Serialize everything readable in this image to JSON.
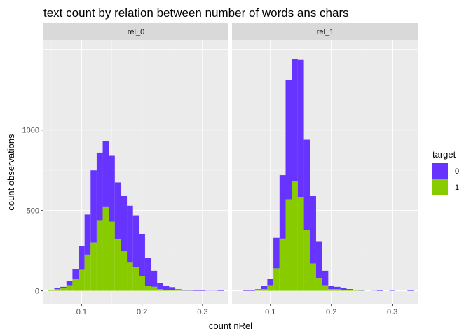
{
  "chart_data": {
    "type": "bar",
    "title": "text count by relation between number of words ans chars",
    "xlabel": "count nRel",
    "ylabel": "count observations",
    "xlim": [
      0.037,
      0.343
    ],
    "ylim": [
      -80,
      1560
    ],
    "x_ticks": [
      0.1,
      0.2,
      0.3
    ],
    "x_tick_labels": [
      "0.1",
      "0.2",
      "0.3"
    ],
    "y_ticks": [
      0,
      500,
      1000
    ],
    "y_tick_labels": [
      "0",
      "500",
      "1000"
    ],
    "grid": true,
    "bin_width": 0.01,
    "stacked": true,
    "legend": {
      "title": "target",
      "position": "right",
      "entries": [
        {
          "label": "0",
          "color": "#6633ff"
        },
        {
          "label": "1",
          "color": "#88cc00"
        }
      ]
    },
    "series_colors": {
      "0": "#6633ff",
      "1": "#88cc00"
    },
    "panels": [
      {
        "label": "rel_0",
        "bins": [
          {
            "x": 0.05,
            "v0": 2,
            "v1": 5
          },
          {
            "x": 0.06,
            "v0": 10,
            "v1": 10
          },
          {
            "x": 0.07,
            "v0": 10,
            "v1": 15
          },
          {
            "x": 0.08,
            "v0": 25,
            "v1": 35
          },
          {
            "x": 0.09,
            "v0": 60,
            "v1": 75
          },
          {
            "x": 0.1,
            "v0": 150,
            "v1": 130
          },
          {
            "x": 0.11,
            "v0": 250,
            "v1": 225
          },
          {
            "x": 0.12,
            "v0": 450,
            "v1": 300
          },
          {
            "x": 0.13,
            "v0": 420,
            "v1": 440
          },
          {
            "x": 0.14,
            "v0": 405,
            "v1": 525
          },
          {
            "x": 0.15,
            "v0": 410,
            "v1": 430
          },
          {
            "x": 0.16,
            "v0": 355,
            "v1": 320
          },
          {
            "x": 0.17,
            "v0": 345,
            "v1": 245
          },
          {
            "x": 0.18,
            "v0": 355,
            "v1": 175
          },
          {
            "x": 0.19,
            "v0": 320,
            "v1": 150
          },
          {
            "x": 0.2,
            "v0": 265,
            "v1": 90
          },
          {
            "x": 0.21,
            "v0": 175,
            "v1": 30
          },
          {
            "x": 0.22,
            "v0": 100,
            "v1": 25
          },
          {
            "x": 0.23,
            "v0": 40,
            "v1": 10
          },
          {
            "x": 0.24,
            "v0": 25,
            "v1": 5
          },
          {
            "x": 0.25,
            "v0": 20,
            "v1": 3
          },
          {
            "x": 0.26,
            "v0": 8,
            "v1": 2
          },
          {
            "x": 0.27,
            "v0": 6,
            "v1": 1
          },
          {
            "x": 0.28,
            "v0": 4,
            "v1": 1
          },
          {
            "x": 0.29,
            "v0": 3,
            "v1": 0
          },
          {
            "x": 0.3,
            "v0": 3,
            "v1": 0
          },
          {
            "x": 0.31,
            "v0": 1,
            "v1": 0
          },
          {
            "x": 0.32,
            "v0": 1,
            "v1": 0
          },
          {
            "x": 0.33,
            "v0": 5,
            "v1": 0
          }
        ]
      },
      {
        "label": "rel_1",
        "bins": [
          {
            "x": 0.06,
            "v0": 3,
            "v1": 0
          },
          {
            "x": 0.07,
            "v0": 3,
            "v1": 0
          },
          {
            "x": 0.08,
            "v0": 8,
            "v1": 2
          },
          {
            "x": 0.09,
            "v0": 20,
            "v1": 10
          },
          {
            "x": 0.1,
            "v0": 40,
            "v1": 35
          },
          {
            "x": 0.11,
            "v0": 190,
            "v1": 140
          },
          {
            "x": 0.12,
            "v0": 395,
            "v1": 325
          },
          {
            "x": 0.13,
            "v0": 740,
            "v1": 570
          },
          {
            "x": 0.14,
            "v0": 760,
            "v1": 680
          },
          {
            "x": 0.15,
            "v0": 855,
            "v1": 580
          },
          {
            "x": 0.16,
            "v0": 560,
            "v1": 380
          },
          {
            "x": 0.17,
            "v0": 420,
            "v1": 170
          },
          {
            "x": 0.18,
            "v0": 225,
            "v1": 80
          },
          {
            "x": 0.19,
            "v0": 90,
            "v1": 35
          },
          {
            "x": 0.2,
            "v0": 20,
            "v1": 10
          },
          {
            "x": 0.21,
            "v0": 15,
            "v1": 10
          },
          {
            "x": 0.22,
            "v0": 15,
            "v1": 5
          },
          {
            "x": 0.23,
            "v0": 8,
            "v1": 3
          },
          {
            "x": 0.24,
            "v0": 3,
            "v1": 2
          },
          {
            "x": 0.25,
            "v0": 3,
            "v1": 1
          },
          {
            "x": 0.27,
            "v0": 1,
            "v1": 0
          },
          {
            "x": 0.28,
            "v0": 3,
            "v1": 0
          },
          {
            "x": 0.3,
            "v0": 2,
            "v1": 0
          },
          {
            "x": 0.33,
            "v0": 5,
            "v1": 0
          }
        ]
      }
    ]
  }
}
